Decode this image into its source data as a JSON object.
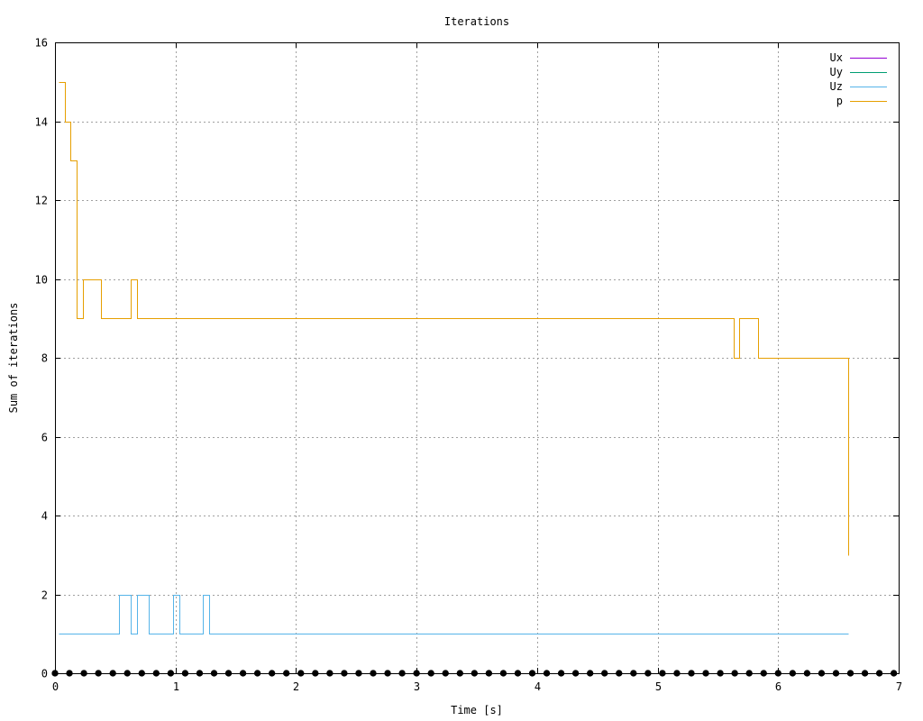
{
  "chart_data": {
    "type": "line",
    "title": "Iterations",
    "xlabel": "Time [s]",
    "ylabel": "Sum of iterations",
    "xlim": [
      0,
      7
    ],
    "ylim": [
      0,
      16
    ],
    "xticks": [
      0,
      1,
      2,
      3,
      4,
      5,
      6,
      7
    ],
    "yticks": [
      0,
      2,
      4,
      6,
      8,
      10,
      12,
      14,
      16
    ],
    "grid": true,
    "legend_position": "top-right",
    "series": [
      {
        "name": "Ux",
        "color": "#9400d3",
        "style": "points",
        "x": [
          0.0,
          0.12,
          0.24,
          0.36,
          0.48,
          0.6,
          0.72,
          0.84,
          0.96,
          1.08,
          1.2,
          1.32,
          1.44,
          1.56,
          1.68,
          1.8,
          1.92,
          2.04,
          2.16,
          2.28,
          2.4,
          2.52,
          2.64,
          2.76,
          2.88,
          3.0,
          3.12,
          3.24,
          3.36,
          3.48,
          3.6,
          3.72,
          3.84,
          3.96,
          4.08,
          4.2,
          4.32,
          4.44,
          4.56,
          4.68,
          4.8,
          4.92,
          5.04,
          5.16,
          5.28,
          5.4,
          5.52,
          5.64,
          5.76,
          5.88,
          6.0,
          6.12,
          6.24,
          6.36,
          6.48,
          6.6,
          6.72,
          6.84,
          6.96
        ],
        "y": [
          0,
          0,
          0,
          0,
          0,
          0,
          0,
          0,
          0,
          0,
          0,
          0,
          0,
          0,
          0,
          0,
          0,
          0,
          0,
          0,
          0,
          0,
          0,
          0,
          0,
          0,
          0,
          0,
          0,
          0,
          0,
          0,
          0,
          0,
          0,
          0,
          0,
          0,
          0,
          0,
          0,
          0,
          0,
          0,
          0,
          0,
          0,
          0,
          0,
          0,
          0,
          0,
          0,
          0,
          0,
          0,
          0,
          0,
          0
        ]
      },
      {
        "name": "Uy",
        "color": "#009e73",
        "style": "points",
        "x": [
          0.0,
          0.12,
          0.24,
          0.36,
          0.48,
          0.6,
          0.72,
          0.84,
          0.96,
          1.08,
          1.2,
          1.32,
          1.44,
          1.56,
          1.68,
          1.8,
          1.92,
          2.04,
          2.16,
          2.28,
          2.4,
          2.52,
          2.64,
          2.76,
          2.88,
          3.0,
          3.12,
          3.24,
          3.36,
          3.48,
          3.6,
          3.72,
          3.84,
          3.96,
          4.08,
          4.2,
          4.32,
          4.44,
          4.56,
          4.68,
          4.8,
          4.92,
          5.04,
          5.16,
          5.28,
          5.4,
          5.52,
          5.64,
          5.76,
          5.88,
          6.0,
          6.12,
          6.24,
          6.36,
          6.48,
          6.6,
          6.72,
          6.84,
          6.96
        ],
        "y": [
          0,
          0,
          0,
          0,
          0,
          0,
          0,
          0,
          0,
          0,
          0,
          0,
          0,
          0,
          0,
          0,
          0,
          0,
          0,
          0,
          0,
          0,
          0,
          0,
          0,
          0,
          0,
          0,
          0,
          0,
          0,
          0,
          0,
          0,
          0,
          0,
          0,
          0,
          0,
          0,
          0,
          0,
          0,
          0,
          0,
          0,
          0,
          0,
          0,
          0,
          0,
          0,
          0,
          0,
          0,
          0,
          0,
          0,
          0
        ]
      },
      {
        "name": "Uz",
        "color": "#56b4e9",
        "style": "steps",
        "x": [
          0.03,
          0.53,
          0.53,
          0.63,
          0.63,
          0.68,
          0.68,
          0.78,
          0.78,
          0.98,
          0.98,
          1.03,
          1.03,
          1.23,
          1.23,
          1.28,
          1.28,
          6.58
        ],
        "y": [
          1,
          1,
          2,
          2,
          1,
          1,
          2,
          2,
          1,
          1,
          2,
          2,
          1,
          1,
          2,
          2,
          1,
          1
        ]
      },
      {
        "name": "p",
        "color": "#e69f00",
        "style": "steps",
        "x": [
          0.03,
          0.08,
          0.08,
          0.13,
          0.13,
          0.18,
          0.18,
          0.23,
          0.23,
          0.38,
          0.38,
          0.63,
          0.63,
          0.68,
          0.68,
          5.63,
          5.63,
          5.68,
          5.68,
          5.83,
          5.83,
          6.58,
          6.58
        ],
        "y": [
          15,
          15,
          14,
          14,
          13,
          13,
          9,
          9,
          10,
          10,
          9,
          9,
          10,
          10,
          9,
          9,
          8,
          8,
          9,
          9,
          8,
          8,
          3
        ]
      }
    ]
  }
}
